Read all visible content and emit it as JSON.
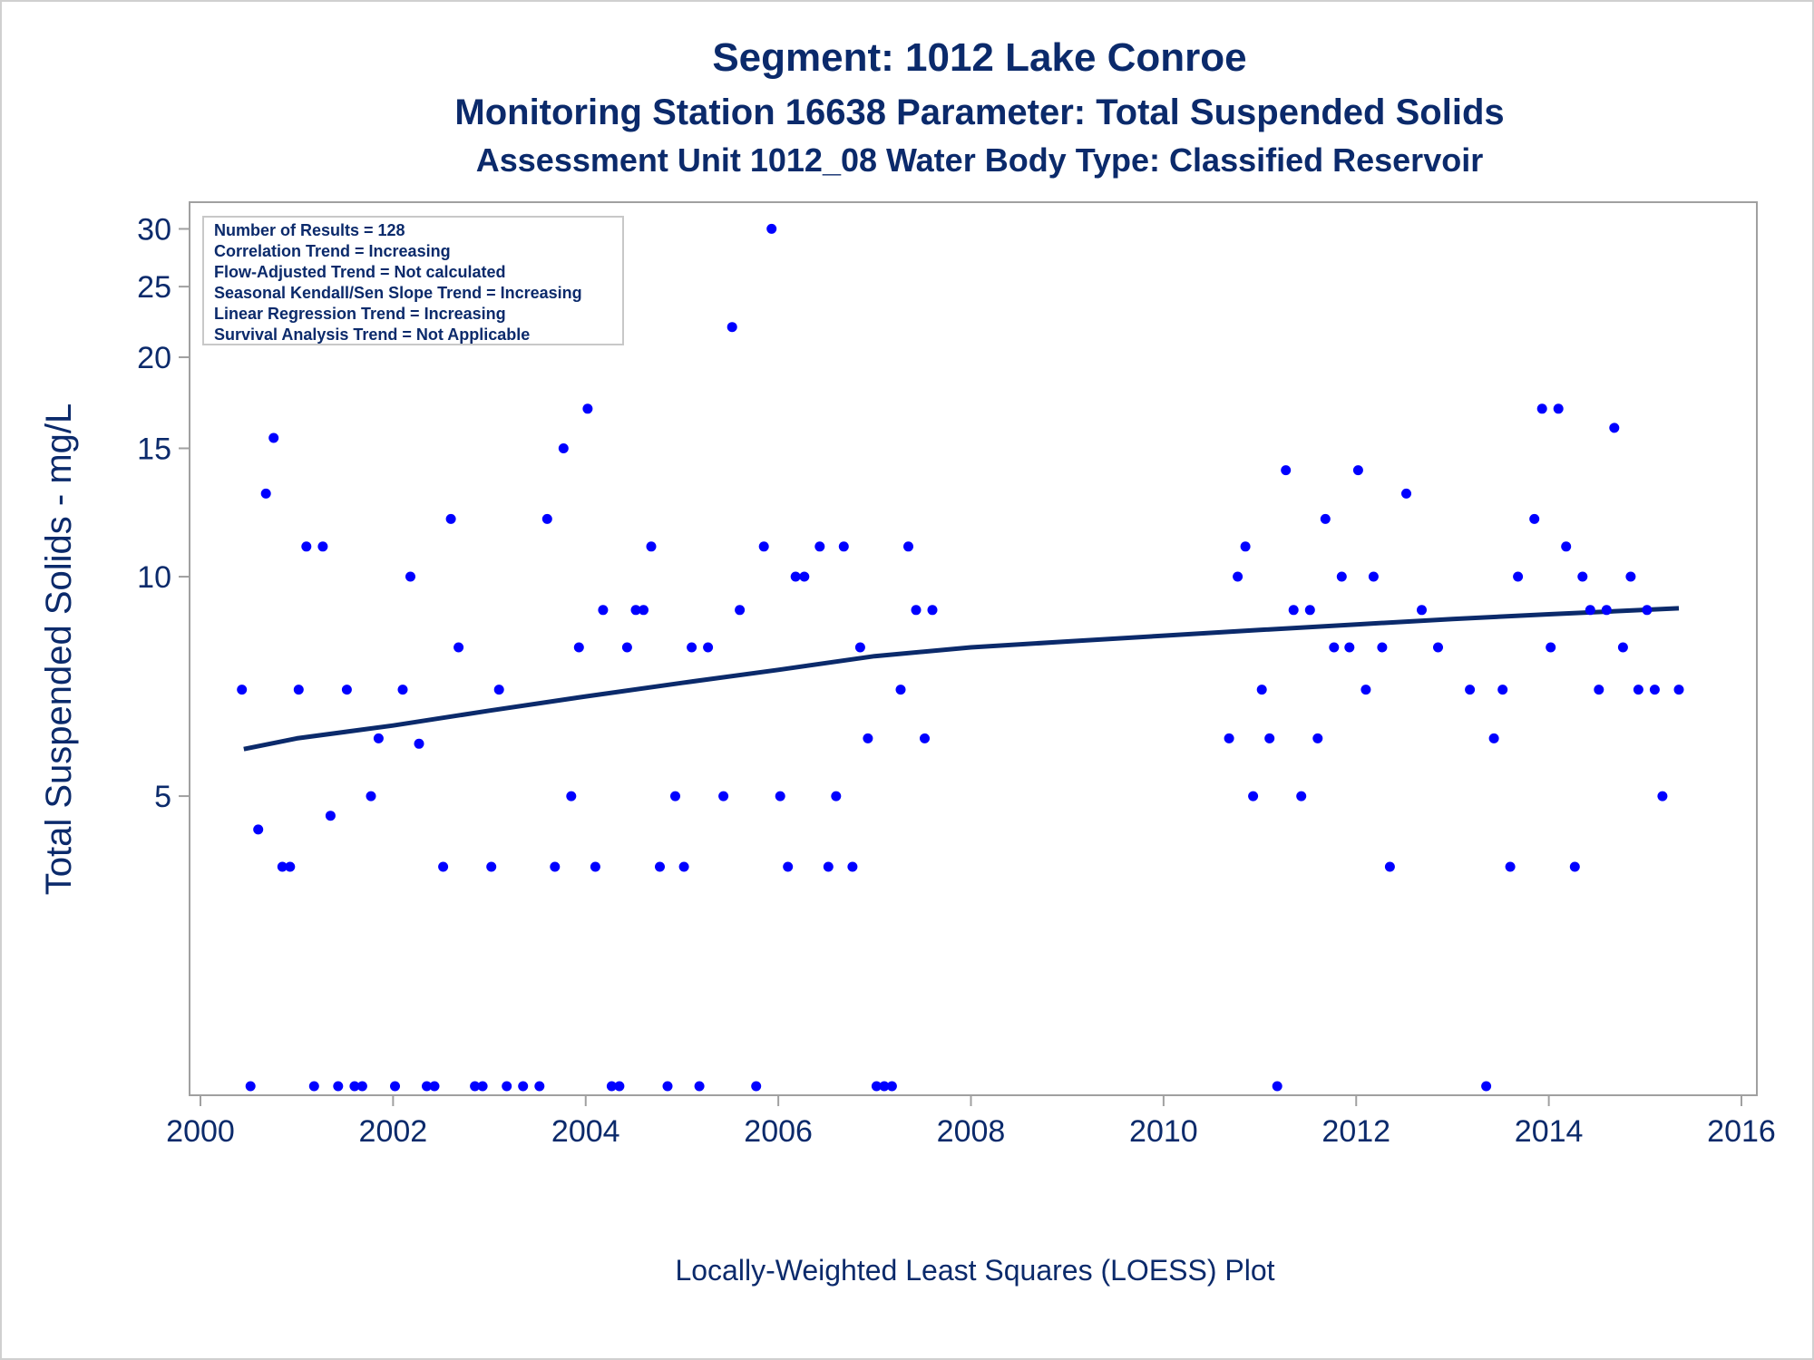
{
  "titles": [
    "Segment: 1012  Lake Conroe",
    "Monitoring Station 16638 Parameter: Total Suspended Solids",
    "Assessment Unit 1012_08   Water Body Type: Classified Reservoir"
  ],
  "info_box": [
    "Number of Results = 128",
    "Correlation Trend = Increasing",
    "Flow-Adjusted Trend = Not calculated",
    "Seasonal Kendall/Sen Slope Trend = Increasing",
    "Linear Regression Trend = Increasing",
    "Survival Analysis Trend = Not Applicable"
  ],
  "footnote": "Locally-Weighted Least Squares (LOESS) Plot",
  "colors": {
    "text": "#0b2a6b",
    "points": "#0000ff",
    "trend": "#0b2a6b",
    "frame": "#a0a0a0"
  },
  "chart_data": {
    "type": "scatter",
    "ylabel": "Total Suspended Solids - mg/L",
    "xlabel": "",
    "xlim": [
      2000,
      2016
    ],
    "ylim": [
      2,
      31
    ],
    "yscale": "log",
    "xticks": [
      2000,
      2002,
      2004,
      2006,
      2008,
      2010,
      2012,
      2014,
      2016
    ],
    "yticks": [
      5,
      10,
      15,
      20,
      25,
      30
    ],
    "grid": false,
    "points": [
      [
        2000.43,
        7
      ],
      [
        2000.52,
        2
      ],
      [
        2000.6,
        4.5
      ],
      [
        2000.68,
        13
      ],
      [
        2000.76,
        15.5
      ],
      [
        2000.85,
        4
      ],
      [
        2000.93,
        4
      ],
      [
        2001.02,
        7
      ],
      [
        2001.1,
        11
      ],
      [
        2001.18,
        2
      ],
      [
        2001.27,
        11
      ],
      [
        2001.35,
        4.7
      ],
      [
        2001.43,
        2
      ],
      [
        2001.52,
        7
      ],
      [
        2001.6,
        2
      ],
      [
        2001.68,
        2
      ],
      [
        2001.77,
        5
      ],
      [
        2001.85,
        6
      ],
      [
        2002.02,
        2
      ],
      [
        2002.1,
        7
      ],
      [
        2002.18,
        10
      ],
      [
        2002.27,
        5.9
      ],
      [
        2002.35,
        2
      ],
      [
        2002.43,
        2
      ],
      [
        2002.52,
        4
      ],
      [
        2002.6,
        12
      ],
      [
        2002.68,
        8
      ],
      [
        2002.85,
        2
      ],
      [
        2002.93,
        2
      ],
      [
        2003.02,
        4
      ],
      [
        2003.1,
        7
      ],
      [
        2003.18,
        2
      ],
      [
        2003.35,
        2
      ],
      [
        2003.52,
        2
      ],
      [
        2003.6,
        12
      ],
      [
        2003.68,
        4
      ],
      [
        2003.77,
        15
      ],
      [
        2003.85,
        5
      ],
      [
        2003.93,
        8
      ],
      [
        2004.02,
        17
      ],
      [
        2004.1,
        4
      ],
      [
        2004.18,
        9
      ],
      [
        2004.27,
        2
      ],
      [
        2004.35,
        2
      ],
      [
        2004.43,
        8
      ],
      [
        2004.52,
        9
      ],
      [
        2004.6,
        9
      ],
      [
        2004.68,
        11
      ],
      [
        2004.77,
        4
      ],
      [
        2004.85,
        2
      ],
      [
        2004.93,
        5
      ],
      [
        2005.02,
        4
      ],
      [
        2005.1,
        8
      ],
      [
        2005.18,
        2
      ],
      [
        2005.27,
        8
      ],
      [
        2005.43,
        5
      ],
      [
        2005.52,
        22
      ],
      [
        2005.6,
        9
      ],
      [
        2005.77,
        2
      ],
      [
        2005.85,
        11
      ],
      [
        2005.93,
        30
      ],
      [
        2006.02,
        5
      ],
      [
        2006.1,
        4
      ],
      [
        2006.18,
        10
      ],
      [
        2006.27,
        10
      ],
      [
        2006.43,
        11
      ],
      [
        2006.52,
        4
      ],
      [
        2006.6,
        5
      ],
      [
        2006.68,
        11
      ],
      [
        2006.77,
        4
      ],
      [
        2006.85,
        8
      ],
      [
        2006.93,
        6
      ],
      [
        2007.02,
        2
      ],
      [
        2007.1,
        2
      ],
      [
        2007.18,
        2
      ],
      [
        2007.27,
        7
      ],
      [
        2007.35,
        11
      ],
      [
        2007.43,
        9
      ],
      [
        2007.52,
        6
      ],
      [
        2007.6,
        9
      ],
      [
        2010.68,
        6
      ],
      [
        2010.77,
        10
      ],
      [
        2010.85,
        11
      ],
      [
        2010.93,
        5
      ],
      [
        2011.02,
        7
      ],
      [
        2011.1,
        6
      ],
      [
        2011.18,
        2
      ],
      [
        2011.27,
        14
      ],
      [
        2011.35,
        9
      ],
      [
        2011.43,
        5
      ],
      [
        2011.52,
        9
      ],
      [
        2011.6,
        6
      ],
      [
        2011.68,
        12
      ],
      [
        2011.77,
        8
      ],
      [
        2011.85,
        10
      ],
      [
        2011.93,
        8
      ],
      [
        2012.02,
        14
      ],
      [
        2012.1,
        7
      ],
      [
        2012.18,
        10
      ],
      [
        2012.27,
        8
      ],
      [
        2012.35,
        4
      ],
      [
        2012.52,
        13
      ],
      [
        2012.68,
        9
      ],
      [
        2012.85,
        8
      ],
      [
        2013.18,
        7
      ],
      [
        2013.35,
        2
      ],
      [
        2013.43,
        6
      ],
      [
        2013.52,
        7
      ],
      [
        2013.6,
        4
      ],
      [
        2013.68,
        10
      ],
      [
        2013.85,
        12
      ],
      [
        2013.93,
        17
      ],
      [
        2014.02,
        8
      ],
      [
        2014.1,
        17
      ],
      [
        2014.18,
        11
      ],
      [
        2014.27,
        4
      ],
      [
        2014.35,
        10
      ],
      [
        2014.43,
        9
      ],
      [
        2014.52,
        7
      ],
      [
        2014.6,
        9
      ],
      [
        2014.68,
        16
      ],
      [
        2014.77,
        8
      ],
      [
        2014.85,
        10
      ],
      [
        2014.93,
        7
      ],
      [
        2015.02,
        9
      ],
      [
        2015.1,
        7
      ],
      [
        2015.18,
        5
      ],
      [
        2015.35,
        7
      ]
    ],
    "trend": {
      "name": "LOESS",
      "x": [
        2000.45,
        2001,
        2002,
        2003,
        2004,
        2005,
        2006,
        2007,
        2008,
        2009,
        2010,
        2011,
        2012,
        2013,
        2014,
        2015.35
      ],
      "y": [
        5.8,
        6.0,
        6.25,
        6.55,
        6.85,
        7.15,
        7.45,
        7.78,
        8.0,
        8.15,
        8.3,
        8.45,
        8.6,
        8.75,
        8.88,
        9.05
      ]
    }
  }
}
